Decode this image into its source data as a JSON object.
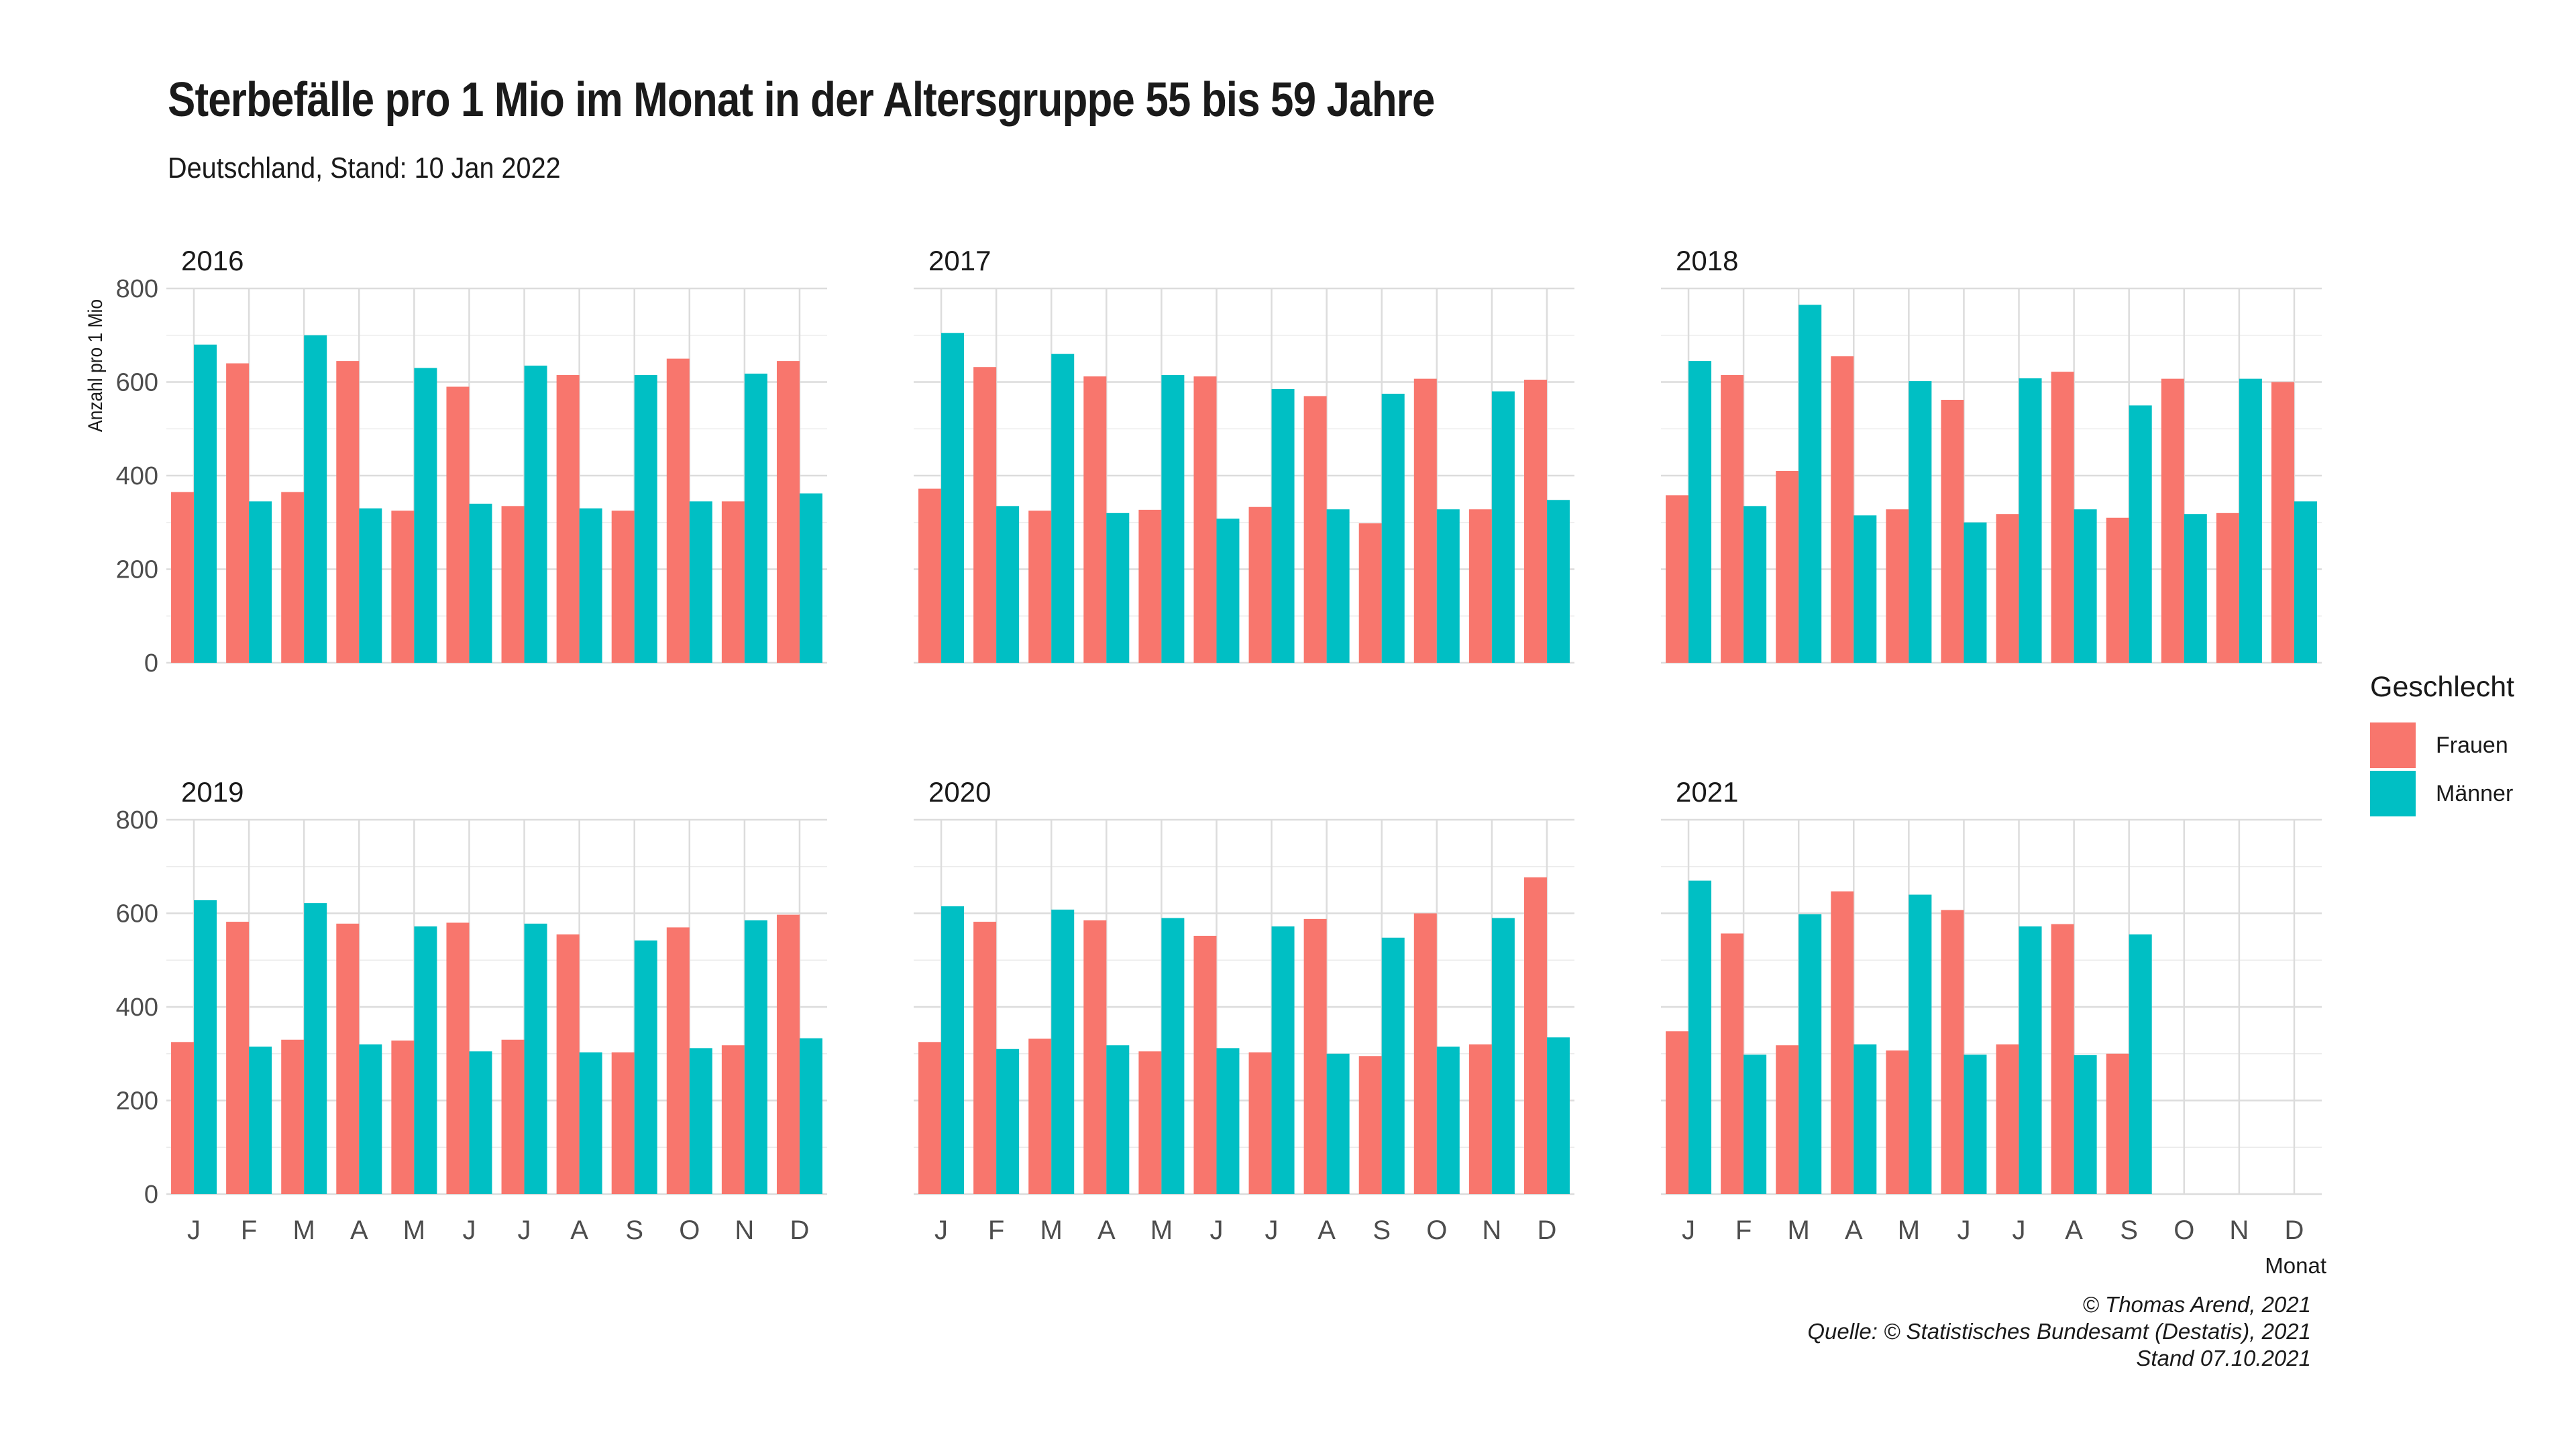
{
  "title": "Sterbefälle pro 1 Mio im Monat in der Altersgruppe 55 bis 59 Jahre",
  "subtitle": "Deutschland, Stand: 10 Jan 2022",
  "caption": [
    "© Thomas Arend, 2021",
    "Quelle: © Statistisches Bundesamt (Destatis), 2021",
    "Stand 07.10.2021"
  ],
  "legend": {
    "title": "Geschlecht",
    "items": [
      {
        "label": "Frauen",
        "color": "#F8766D"
      },
      {
        "label": "Männer",
        "color": "#00BFC4"
      }
    ]
  },
  "chart_data": {
    "type": "bar",
    "layout": "facet-grid",
    "title": "Sterbefälle pro 1 Mio im Monat in der Altersgruppe 55 bis 59 Jahre",
    "subtitle": "Deutschland, Stand: 10 Jan 2022",
    "xlabel": "Monat",
    "ylabel": "Anzahl pro 1 Mio",
    "ylim": [
      0,
      800
    ],
    "yticks": [
      0,
      200,
      400,
      600,
      800
    ],
    "categories": [
      "J",
      "F",
      "M",
      "A",
      "M",
      "J",
      "J",
      "A",
      "S",
      "O",
      "N",
      "D"
    ],
    "grid": true,
    "legend_position": "right",
    "series_names": [
      "Frauen",
      "Männer"
    ],
    "colors": {
      "Frauen": "#F8766D",
      "Männer": "#00BFC4"
    },
    "panels": [
      {
        "facet": "2016",
        "frauen": [
          365,
          640,
          365,
          645,
          325,
          590,
          335,
          615,
          325,
          650,
          345,
          645
        ],
        "maenner": [
          680,
          345,
          700,
          330,
          630,
          340,
          635,
          330,
          615,
          345,
          618,
          362
        ]
      },
      {
        "facet": "2017",
        "frauen": [
          372,
          632,
          325,
          612,
          327,
          612,
          333,
          570,
          298,
          607,
          328,
          605
        ],
        "maenner": [
          705,
          335,
          660,
          320,
          615,
          308,
          585,
          328,
          575,
          328,
          580,
          348
        ]
      },
      {
        "facet": "2018",
        "frauen": [
          358,
          615,
          410,
          655,
          328,
          562,
          318,
          622,
          310,
          607,
          320,
          600
        ],
        "maenner": [
          645,
          335,
          765,
          315,
          602,
          300,
          608,
          328,
          550,
          318,
          607,
          345
        ]
      },
      {
        "facet": "2019",
        "frauen": [
          325,
          582,
          330,
          578,
          328,
          580,
          330,
          555,
          303,
          570,
          318,
          597
        ],
        "maenner": [
          628,
          315,
          622,
          320,
          572,
          305,
          578,
          303,
          542,
          312,
          585,
          333
        ]
      },
      {
        "facet": "2020",
        "frauen": [
          325,
          582,
          332,
          585,
          305,
          552,
          303,
          588,
          295,
          600,
          320,
          677
        ],
        "maenner": [
          615,
          310,
          608,
          318,
          590,
          312,
          572,
          300,
          548,
          315,
          590,
          335
        ]
      },
      {
        "facet": "2021",
        "frauen": [
          348,
          557,
          318,
          647,
          307,
          607,
          320,
          577,
          300,
          null,
          null,
          null
        ],
        "maenner": [
          670,
          298,
          598,
          320,
          640,
          298,
          572,
          297,
          555,
          null,
          null,
          null
        ]
      }
    ]
  }
}
